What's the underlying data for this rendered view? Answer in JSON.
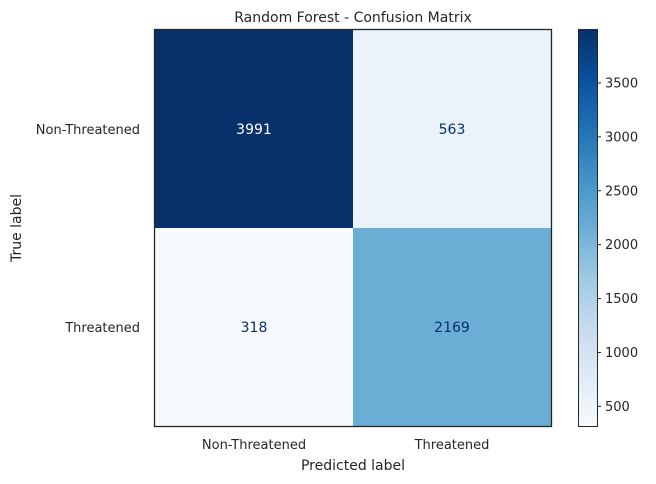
{
  "chart_data": {
    "type": "heatmap",
    "title": "Random Forest - Confusion Matrix",
    "xlabel": "Predicted label",
    "ylabel": "True label",
    "x_categories": [
      "Non-Threatened",
      "Threatened"
    ],
    "y_categories": [
      "Non-Threatened",
      "Threatened"
    ],
    "values": [
      [
        3991,
        563
      ],
      [
        318,
        2169
      ]
    ],
    "colormap": "Blues",
    "colorbar": {
      "ticks": [
        500,
        1000,
        1500,
        2000,
        2500,
        3000,
        3500
      ],
      "range": [
        318,
        3991
      ]
    }
  }
}
